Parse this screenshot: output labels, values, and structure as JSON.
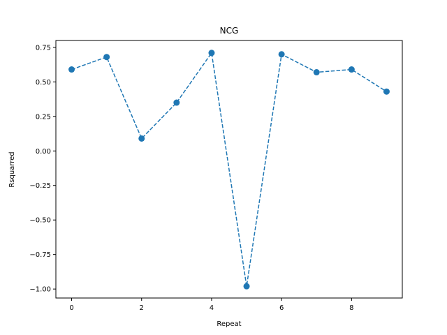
{
  "chart_data": {
    "type": "line",
    "title": "NCG",
    "xlabel": "Repeat",
    "ylabel": "Rsquarred",
    "xlim": [
      -0.45,
      9.45
    ],
    "ylim": [
      -1.065,
      0.8
    ],
    "xticks": [
      0,
      2,
      4,
      6,
      8
    ],
    "xtick_labels": [
      "0",
      "2",
      "4",
      "6",
      "8"
    ],
    "yticks": [
      -1.0,
      -0.75,
      -0.5,
      -0.25,
      0.0,
      0.25,
      0.5,
      0.75
    ],
    "ytick_labels": [
      "−1.00",
      "−0.75",
      "−0.50",
      "−0.25",
      "0.00",
      "0.25",
      "0.50",
      "0.75"
    ],
    "grid": false,
    "series": [
      {
        "color": "#1f77b4",
        "line_style": "dashed",
        "marker": "circle",
        "x": [
          0,
          1,
          2,
          3,
          4,
          5,
          6,
          7,
          8,
          9
        ],
        "y": [
          0.59,
          0.68,
          0.09,
          0.35,
          0.71,
          -0.98,
          0.7,
          0.57,
          0.59,
          0.43
        ]
      }
    ]
  }
}
